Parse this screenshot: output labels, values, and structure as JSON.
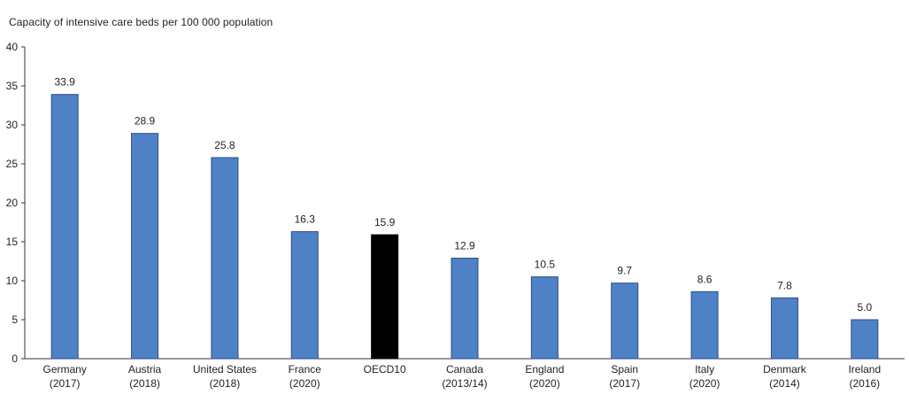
{
  "chart_data": {
    "type": "bar",
    "title": "Capacity of intensive care beds per 100 000 population",
    "xlabel": "",
    "ylabel": "",
    "ylim": [
      0,
      40
    ],
    "yticks": [
      0,
      5,
      10,
      15,
      20,
      25,
      30,
      35,
      40
    ],
    "grid": false,
    "categories": [
      [
        "Germany",
        "(2017)"
      ],
      [
        "Austria",
        "(2018)"
      ],
      [
        "United States",
        "(2018)"
      ],
      [
        "France",
        "(2020)"
      ],
      [
        "OECD10",
        ""
      ],
      [
        "Canada",
        "(2013/14)"
      ],
      [
        "England",
        "(2020)"
      ],
      [
        "Spain",
        "(2017)"
      ],
      [
        "Italy",
        "(2020)"
      ],
      [
        "Denmark",
        "(2014)"
      ],
      [
        "Ireland",
        "(2016)"
      ]
    ],
    "values": [
      33.9,
      28.9,
      25.8,
      16.3,
      15.9,
      12.9,
      10.5,
      9.7,
      8.6,
      7.8,
      5.0
    ],
    "value_labels": [
      "33.9",
      "28.9",
      "25.8",
      "16.3",
      "15.9",
      "12.9",
      "10.5",
      "9.7",
      "8.6",
      "7.8",
      "5.0"
    ],
    "colors": {
      "bar": "#4f81c7",
      "highlight": "#000000",
      "bar_border": "#2a4f86",
      "axis": "#333333"
    },
    "highlight_category": "OECD10"
  }
}
